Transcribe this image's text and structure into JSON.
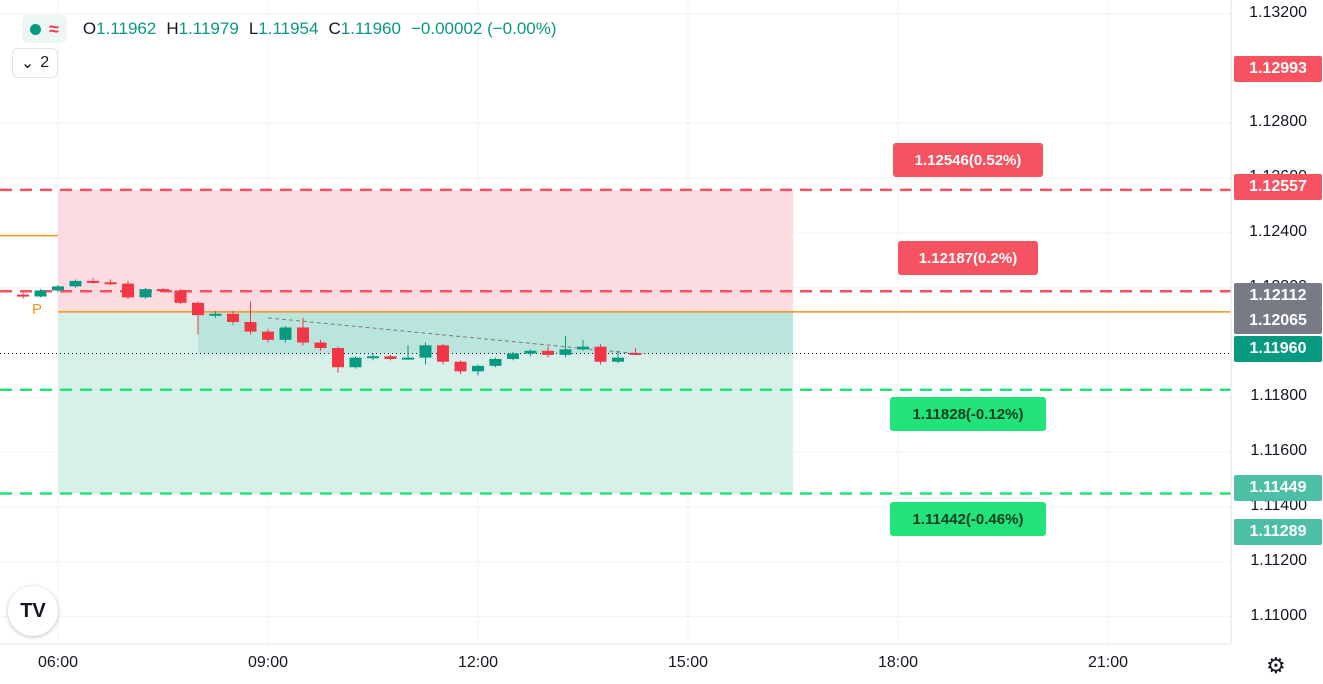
{
  "header": {
    "pill_icon": "status-dot",
    "wave_icon": "wave-icon",
    "wave_glyph": "≈",
    "open_label": "O",
    "open": "1.11962",
    "high_label": "H",
    "high": "1.11979",
    "low_label": "L",
    "low": "1.11954",
    "close_label": "C",
    "close": "1.11960",
    "change": "−0.00002 (−0.00%)"
  },
  "collapse": {
    "chevron": "⌄",
    "count": "2"
  },
  "price_axis": [
    "1.13200",
    "1.12800",
    "1.12600",
    "1.12400",
    "1.12200",
    "1.11800",
    "1.11600",
    "1.11400",
    "1.11200",
    "1.11000"
  ],
  "price_tags": [
    {
      "text": "1.12993",
      "color": "#f7525f"
    },
    {
      "text": "1.12557",
      "color": "#f7525f"
    },
    {
      "text": "1.12112",
      "color": "#787b86"
    },
    {
      "text": "1.12065",
      "color": "#787b86"
    },
    {
      "text": "1.11960",
      "color": "#089981"
    },
    {
      "text": "1.11449",
      "color": "#4cbfa6"
    },
    {
      "text": "1.11289",
      "color": "#4cbfa6"
    }
  ],
  "time_axis": [
    "06:00",
    "09:00",
    "12:00",
    "15:00",
    "18:00",
    "21:00"
  ],
  "callouts": {
    "stop": "1.12546(0.52%)",
    "stop2": "1.12187(0.2%)",
    "target1": "1.11828(-0.12%)",
    "target2": "1.11442(-0.46%)"
  },
  "pivot_label": "P",
  "logo_text": "TV",
  "settings_icon": "gear-icon",
  "settings_glyph": "⚙",
  "colors": {
    "up": "#089981",
    "down": "#f23645",
    "risk_fill": "#fcdce0",
    "reward_fill": "#d8f0ea",
    "pivot": "#f7931a"
  },
  "chart_data": {
    "type": "candlestick",
    "y_range": [
      1.109,
      1.1325
    ],
    "candles": [
      {
        "t": "05:30",
        "o": 1.12175,
        "h": 1.12185,
        "l": 1.1216,
        "c": 1.12168
      },
      {
        "t": "05:45",
        "o": 1.12168,
        "h": 1.12195,
        "l": 1.12165,
        "c": 1.1219
      },
      {
        "t": "06:00",
        "o": 1.1219,
        "h": 1.1221,
        "l": 1.12185,
        "c": 1.12205
      },
      {
        "t": "06:15",
        "o": 1.12205,
        "h": 1.1223,
        "l": 1.122,
        "c": 1.12225
      },
      {
        "t": "06:30",
        "o": 1.12225,
        "h": 1.12235,
        "l": 1.12215,
        "c": 1.1222
      },
      {
        "t": "06:45",
        "o": 1.1222,
        "h": 1.1223,
        "l": 1.1221,
        "c": 1.12215
      },
      {
        "t": "07:00",
        "o": 1.12215,
        "h": 1.12225,
        "l": 1.1216,
        "c": 1.12165
      },
      {
        "t": "07:15",
        "o": 1.12165,
        "h": 1.122,
        "l": 1.1216,
        "c": 1.12195
      },
      {
        "t": "07:30",
        "o": 1.12195,
        "h": 1.122,
        "l": 1.12185,
        "c": 1.1219
      },
      {
        "t": "07:45",
        "o": 1.1219,
        "h": 1.12195,
        "l": 1.1214,
        "c": 1.12145
      },
      {
        "t": "08:00",
        "o": 1.12145,
        "h": 1.1215,
        "l": 1.1203,
        "c": 1.121
      },
      {
        "t": "08:15",
        "o": 1.121,
        "h": 1.12115,
        "l": 1.1209,
        "c": 1.12105
      },
      {
        "t": "08:30",
        "o": 1.12105,
        "h": 1.12115,
        "l": 1.12065,
        "c": 1.12075
      },
      {
        "t": "08:45",
        "o": 1.12075,
        "h": 1.1215,
        "l": 1.1203,
        "c": 1.1204
      },
      {
        "t": "09:00",
        "o": 1.1204,
        "h": 1.1205,
        "l": 1.12,
        "c": 1.1201
      },
      {
        "t": "09:15",
        "o": 1.1201,
        "h": 1.1206,
        "l": 1.12,
        "c": 1.12055
      },
      {
        "t": "09:30",
        "o": 1.12055,
        "h": 1.1209,
        "l": 1.1199,
        "c": 1.12
      },
      {
        "t": "09:45",
        "o": 1.12,
        "h": 1.1201,
        "l": 1.1197,
        "c": 1.1198
      },
      {
        "t": "10:00",
        "o": 1.1198,
        "h": 1.11985,
        "l": 1.1189,
        "c": 1.1191
      },
      {
        "t": "10:15",
        "o": 1.1191,
        "h": 1.1195,
        "l": 1.11905,
        "c": 1.11945
      },
      {
        "t": "10:30",
        "o": 1.11945,
        "h": 1.1196,
        "l": 1.11935,
        "c": 1.1195
      },
      {
        "t": "10:45",
        "o": 1.1195,
        "h": 1.11955,
        "l": 1.11935,
        "c": 1.1194
      },
      {
        "t": "11:00",
        "o": 1.1194,
        "h": 1.1199,
        "l": 1.11935,
        "c": 1.11945
      },
      {
        "t": "11:15",
        "o": 1.11945,
        "h": 1.12,
        "l": 1.1192,
        "c": 1.1199
      },
      {
        "t": "11:30",
        "o": 1.1199,
        "h": 1.11995,
        "l": 1.1192,
        "c": 1.1193
      },
      {
        "t": "11:45",
        "o": 1.1193,
        "h": 1.11935,
        "l": 1.11885,
        "c": 1.11895
      },
      {
        "t": "12:00",
        "o": 1.11895,
        "h": 1.1192,
        "l": 1.1188,
        "c": 1.11915
      },
      {
        "t": "12:15",
        "o": 1.11915,
        "h": 1.11945,
        "l": 1.1191,
        "c": 1.1194
      },
      {
        "t": "12:30",
        "o": 1.1194,
        "h": 1.11965,
        "l": 1.11935,
        "c": 1.1196
      },
      {
        "t": "12:45",
        "o": 1.1196,
        "h": 1.11975,
        "l": 1.1195,
        "c": 1.1197
      },
      {
        "t": "13:00",
        "o": 1.1197,
        "h": 1.11985,
        "l": 1.11945,
        "c": 1.11955
      },
      {
        "t": "13:15",
        "o": 1.11955,
        "h": 1.12025,
        "l": 1.11945,
        "c": 1.11975
      },
      {
        "t": "13:30",
        "o": 1.11975,
        "h": 1.1201,
        "l": 1.1197,
        "c": 1.11985
      },
      {
        "t": "13:45",
        "o": 1.11985,
        "h": 1.11995,
        "l": 1.1192,
        "c": 1.1193
      },
      {
        "t": "14:00",
        "o": 1.1193,
        "h": 1.1197,
        "l": 1.11925,
        "c": 1.11945
      },
      {
        "t": "14:15",
        "o": 1.11962,
        "h": 1.11979,
        "l": 1.11954,
        "c": 1.1196
      }
    ],
    "levels": {
      "upper_box": 1.12557,
      "lower_box": 1.11449,
      "entry": 1.12112,
      "pivot_prev": 1.1239,
      "stop2": 1.12187,
      "target1": 1.11828,
      "current": 1.1196
    }
  }
}
